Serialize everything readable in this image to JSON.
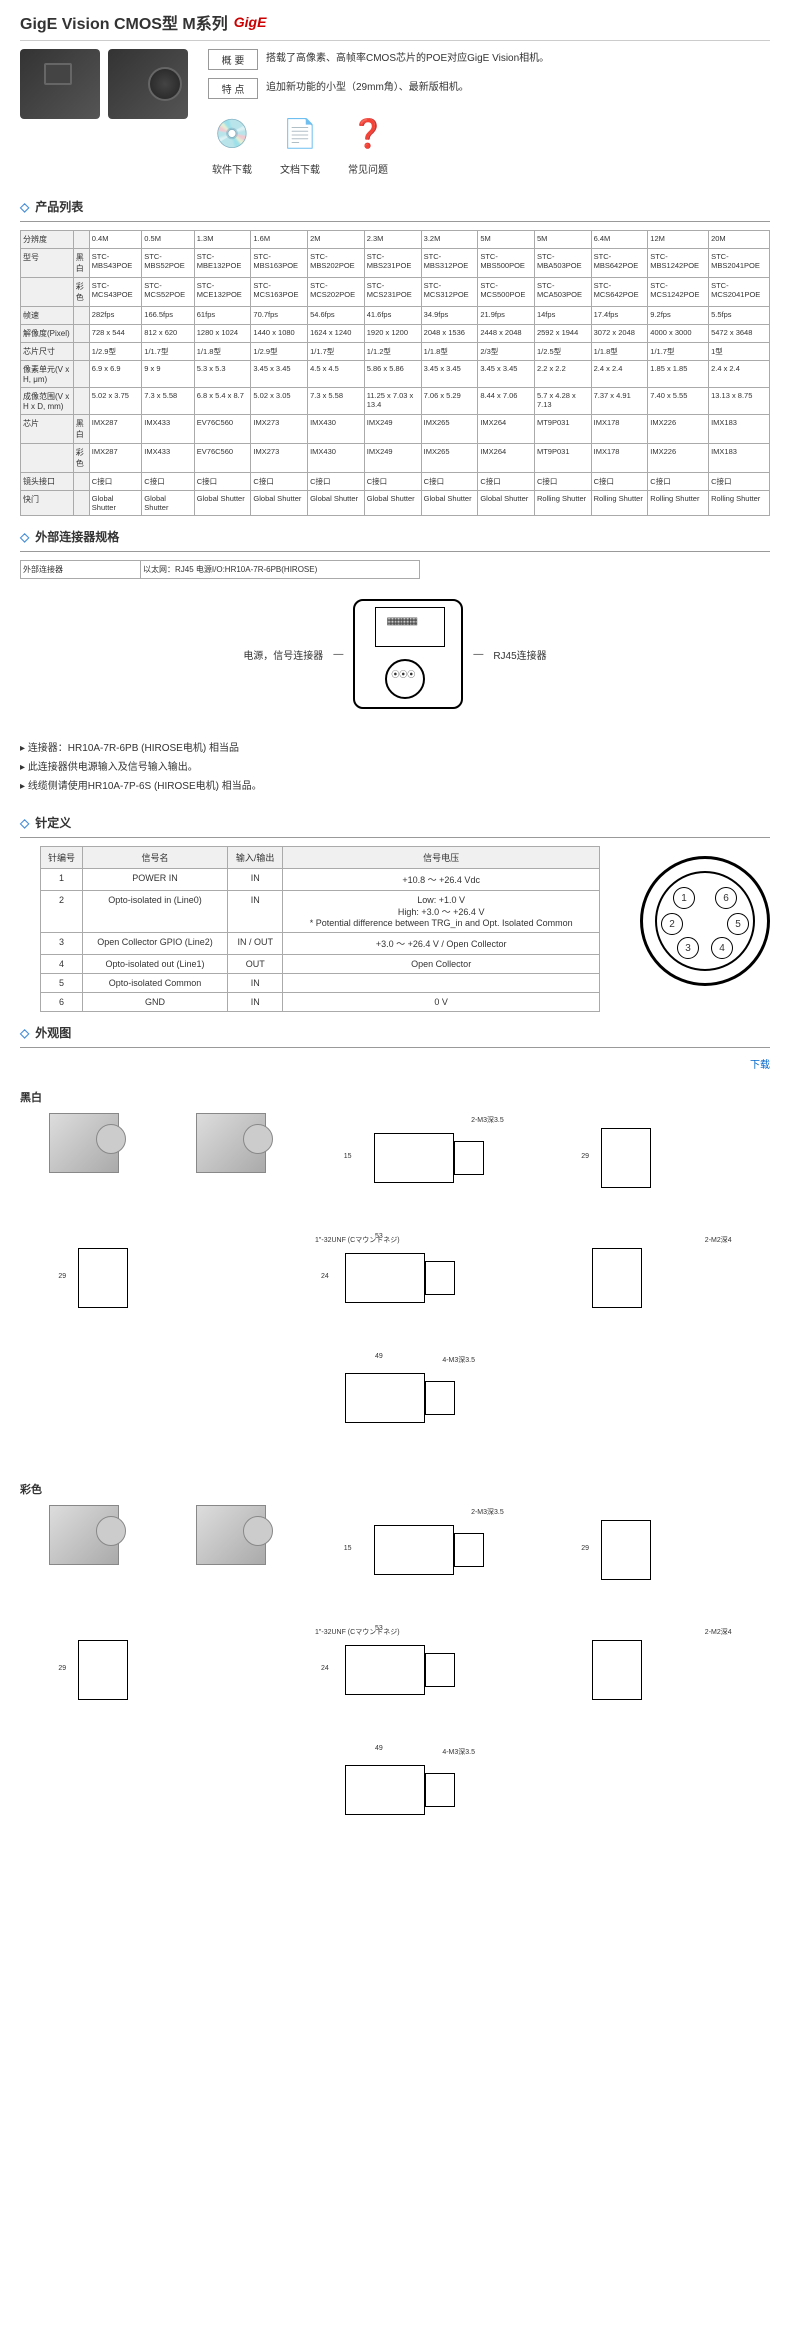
{
  "header": {
    "title": "GigE Vision CMOS型 M系列",
    "tag": "GigE",
    "summary_label": "概 要",
    "summary_text": "搭载了高像素、高帧率CMOS芯片的POE对应GigE Vision相机。",
    "feature_label": "特 点",
    "feature_text": "追加新功能的小型（29mm角）、最新版相机。",
    "icons": [
      {
        "label": "软件下载",
        "glyph": "💿"
      },
      {
        "label": "文档下载",
        "glyph": "📄"
      },
      {
        "label": "常见问题",
        "glyph": "❓"
      }
    ]
  },
  "product_table": {
    "title": "产品列表",
    "cols": [
      "0.4M",
      "0.5M",
      "1.3M",
      "1.6M",
      "2M",
      "2.3M",
      "3.2M",
      "5M",
      "5M",
      "6.4M",
      "12M",
      "20M"
    ],
    "rows": [
      {
        "h": "分辨度",
        "sub": "",
        "cells": [
          "0.4M",
          "0.5M",
          "1.3M",
          "1.6M",
          "2M",
          "2.3M",
          "3.2M",
          "5M",
          "5M",
          "6.4M",
          "12M",
          "20M"
        ]
      },
      {
        "h": "型号",
        "sub": "黑白",
        "cells": [
          "STC-MBS43POE",
          "STC-MBS52POE",
          "STC-MBE132POE",
          "STC-MBS163POE",
          "STC-MBS202POE",
          "STC-MBS231POE",
          "STC-MBS312POE",
          "STC-MBS500POE",
          "STC-MBA503POE",
          "STC-MBS642POE",
          "STC-MBS1242POE",
          "STC-MBS2041POE"
        ]
      },
      {
        "h": "",
        "sub": "彩色",
        "cells": [
          "STC-MCS43POE",
          "STC-MCS52POE",
          "STC-MCE132POE",
          "STC-MCS163POE",
          "STC-MCS202POE",
          "STC-MCS231POE",
          "STC-MCS312POE",
          "STC-MCS500POE",
          "STC-MCA503POE",
          "STC-MCS642POE",
          "STC-MCS1242POE",
          "STC-MCS2041POE"
        ]
      },
      {
        "h": "帧速",
        "sub": "",
        "cells": [
          "282fps",
          "166.5fps",
          "61fps",
          "70.7fps",
          "54.6fps",
          "41.6fps",
          "34.9fps",
          "21.9fps",
          "14fps",
          "17.4fps",
          "9.2fps",
          "5.5fps"
        ]
      },
      {
        "h": "解像度(Pixel)",
        "sub": "",
        "cells": [
          "728 x 544",
          "812 x 620",
          "1280 x 1024",
          "1440 x 1080",
          "1624 x 1240",
          "1920 x 1200",
          "2048 x 1536",
          "2448 x 2048",
          "2592 x 1944",
          "3072 x 2048",
          "4000 x 3000",
          "5472 x 3648"
        ]
      },
      {
        "h": "芯片尺寸",
        "sub": "",
        "cells": [
          "1/2.9型",
          "1/1.7型",
          "1/1.8型",
          "1/2.9型",
          "1/1.7型",
          "1/1.2型",
          "1/1.8型",
          "2/3型",
          "1/2.5型",
          "1/1.8型",
          "1/1.7型",
          "1型"
        ]
      },
      {
        "h": "像素单元(V x H, μm)",
        "sub": "",
        "cells": [
          "6.9 x 6.9",
          "9 x 9",
          "5.3 x 5.3",
          "3.45 x 3.45",
          "4.5 x 4.5",
          "5.86 x 5.86",
          "3.45 x 3.45",
          "3.45 x 3.45",
          "2.2 x 2.2",
          "2.4 x 2.4",
          "1.85 x 1.85",
          "2.4 x 2.4"
        ]
      },
      {
        "h": "成像范围(V x H x D, mm)",
        "sub": "",
        "cells": [
          "5.02 x 3.75",
          "7.3 x 5.58",
          "6.8 x 5.4 x 8.7",
          "5.02 x 3.05",
          "7.3 x 5.58",
          "11.25 x 7.03 x 13.4",
          "7.06 x 5.29",
          "8.44 x 7.06",
          "5.7 x 4.28 x 7.13",
          "7.37 x 4.91",
          "7.40 x 5.55",
          "13.13 x 8.75"
        ]
      },
      {
        "h": "芯片",
        "sub": "黑白",
        "cells": [
          "IMX287",
          "IMX433",
          "EV76C560",
          "IMX273",
          "IMX430",
          "IMX249",
          "IMX265",
          "IMX264",
          "MT9P031",
          "IMX178",
          "IMX226",
          "IMX183"
        ]
      },
      {
        "h": "",
        "sub": "彩色",
        "cells": [
          "IMX287",
          "IMX433",
          "EV76C560",
          "IMX273",
          "IMX430",
          "IMX249",
          "IMX265",
          "IMX264",
          "MT9P031",
          "IMX178",
          "IMX226",
          "IMX183"
        ]
      },
      {
        "h": "镜头接口",
        "sub": "",
        "cells": [
          "C接口",
          "C接口",
          "C接口",
          "C接口",
          "C接口",
          "C接口",
          "C接口",
          "C接口",
          "C接口",
          "C接口",
          "C接口",
          "C接口"
        ]
      },
      {
        "h": "快门",
        "sub": "",
        "cells": [
          "Global Shutter",
          "Global Shutter",
          "Global Shutter",
          "Global Shutter",
          "Global Shutter",
          "Global Shutter",
          "Global Shutter",
          "Global Shutter",
          "Rolling Shutter",
          "Rolling Shutter",
          "Rolling Shutter",
          "Rolling Shutter"
        ]
      }
    ]
  },
  "connector": {
    "title": "外部连接器规格",
    "row_label": "外部连接器",
    "row_value": "以太网：RJ45 电源I/O:HR10A-7R-6PB(HIROSE)",
    "diagram_left": "电源，信号连接器",
    "diagram_right": "RJ45连接器",
    "bullets": [
      "连接器：HR10A-7R-6PB (HIROSE电机) 相当品",
      "此连接器供电源输入及信号输入输出。",
      "线缆侧请使用HR10A-7P-6S (HIROSE电机) 相当品。"
    ]
  },
  "pins": {
    "title": "针定义",
    "headers": [
      "针编号",
      "信号名",
      "输入/输出",
      "信号电压"
    ],
    "rows": [
      [
        "1",
        "POWER IN",
        "IN",
        "+10.8 ～ +26.4 Vdc"
      ],
      [
        "2",
        "Opto-isolated in (Line0)",
        "IN",
        "Low: +1.0 V\nHigh: +3.0 ～ +26.4 V\n* Potential difference between TRG_in and Opt. Isolated Common"
      ],
      [
        "3",
        "Open Collector GPIO (Line2)",
        "IN / OUT",
        "+3.0 ～ +26.4 V / Open Collector"
      ],
      [
        "4",
        "Opto-isolated out (Line1)",
        "OUT",
        "Open Collector"
      ],
      [
        "5",
        "Opto-isolated Common",
        "IN",
        ""
      ],
      [
        "6",
        "GND",
        "IN",
        "0 V"
      ]
    ]
  },
  "drawings": {
    "title": "外观图",
    "download": "下载",
    "mono": "黑白",
    "color": "彩色",
    "dims": {
      "a": "53",
      "b": "49",
      "c": "29",
      "d": "15",
      "e": "24",
      "note1": "2-M3深3.5",
      "note2": "4-M3深3.5",
      "note3": "1\"-32UNF (Cマウントネジ)",
      "note4": "2-M2深4"
    }
  }
}
